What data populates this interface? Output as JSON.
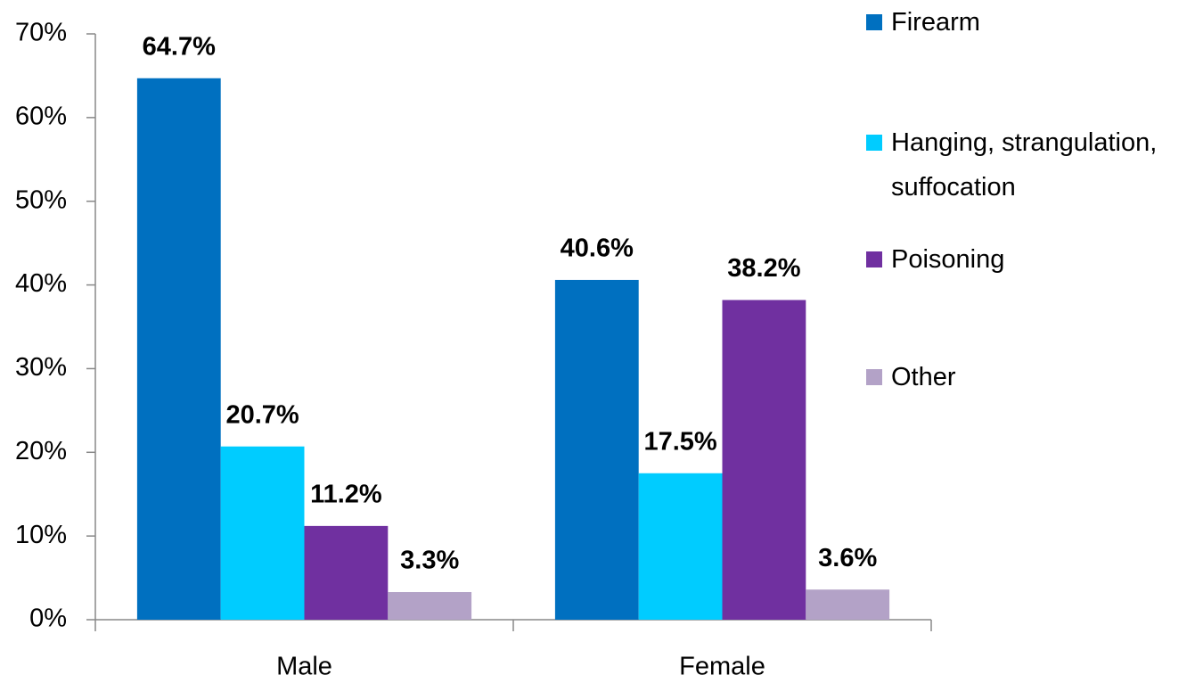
{
  "chart_data": {
    "type": "bar",
    "categories": [
      "Male",
      "Female"
    ],
    "series": [
      {
        "name": "Firearm",
        "color": "#0070c0",
        "values": [
          64.7,
          40.6
        ],
        "value_labels": [
          "64.7%",
          "40.6%"
        ]
      },
      {
        "name": "Hanging, strangulation, suffocation",
        "color": "#00ccff",
        "values": [
          20.7,
          17.5
        ],
        "value_labels": [
          "20.7%",
          "17.5%"
        ]
      },
      {
        "name": "Poisoning",
        "color": "#7030a0",
        "values": [
          11.2,
          38.2
        ],
        "value_labels": [
          "11.2%",
          "38.2%"
        ]
      },
      {
        "name": "Other",
        "color": "#b3a2c7",
        "values": [
          3.3,
          3.6
        ],
        "value_labels": [
          "3.3%",
          "3.6%"
        ]
      }
    ],
    "ylim": [
      0,
      70
    ],
    "yticks": [
      {
        "value": 0,
        "label": "0%"
      },
      {
        "value": 10,
        "label": "10%"
      },
      {
        "value": 20,
        "label": "20%"
      },
      {
        "value": 30,
        "label": "30%"
      },
      {
        "value": 40,
        "label": "40%"
      },
      {
        "value": 50,
        "label": "50%"
      },
      {
        "value": 60,
        "label": "60%"
      },
      {
        "value": 70,
        "label": "70%"
      }
    ],
    "legend": "right"
  }
}
